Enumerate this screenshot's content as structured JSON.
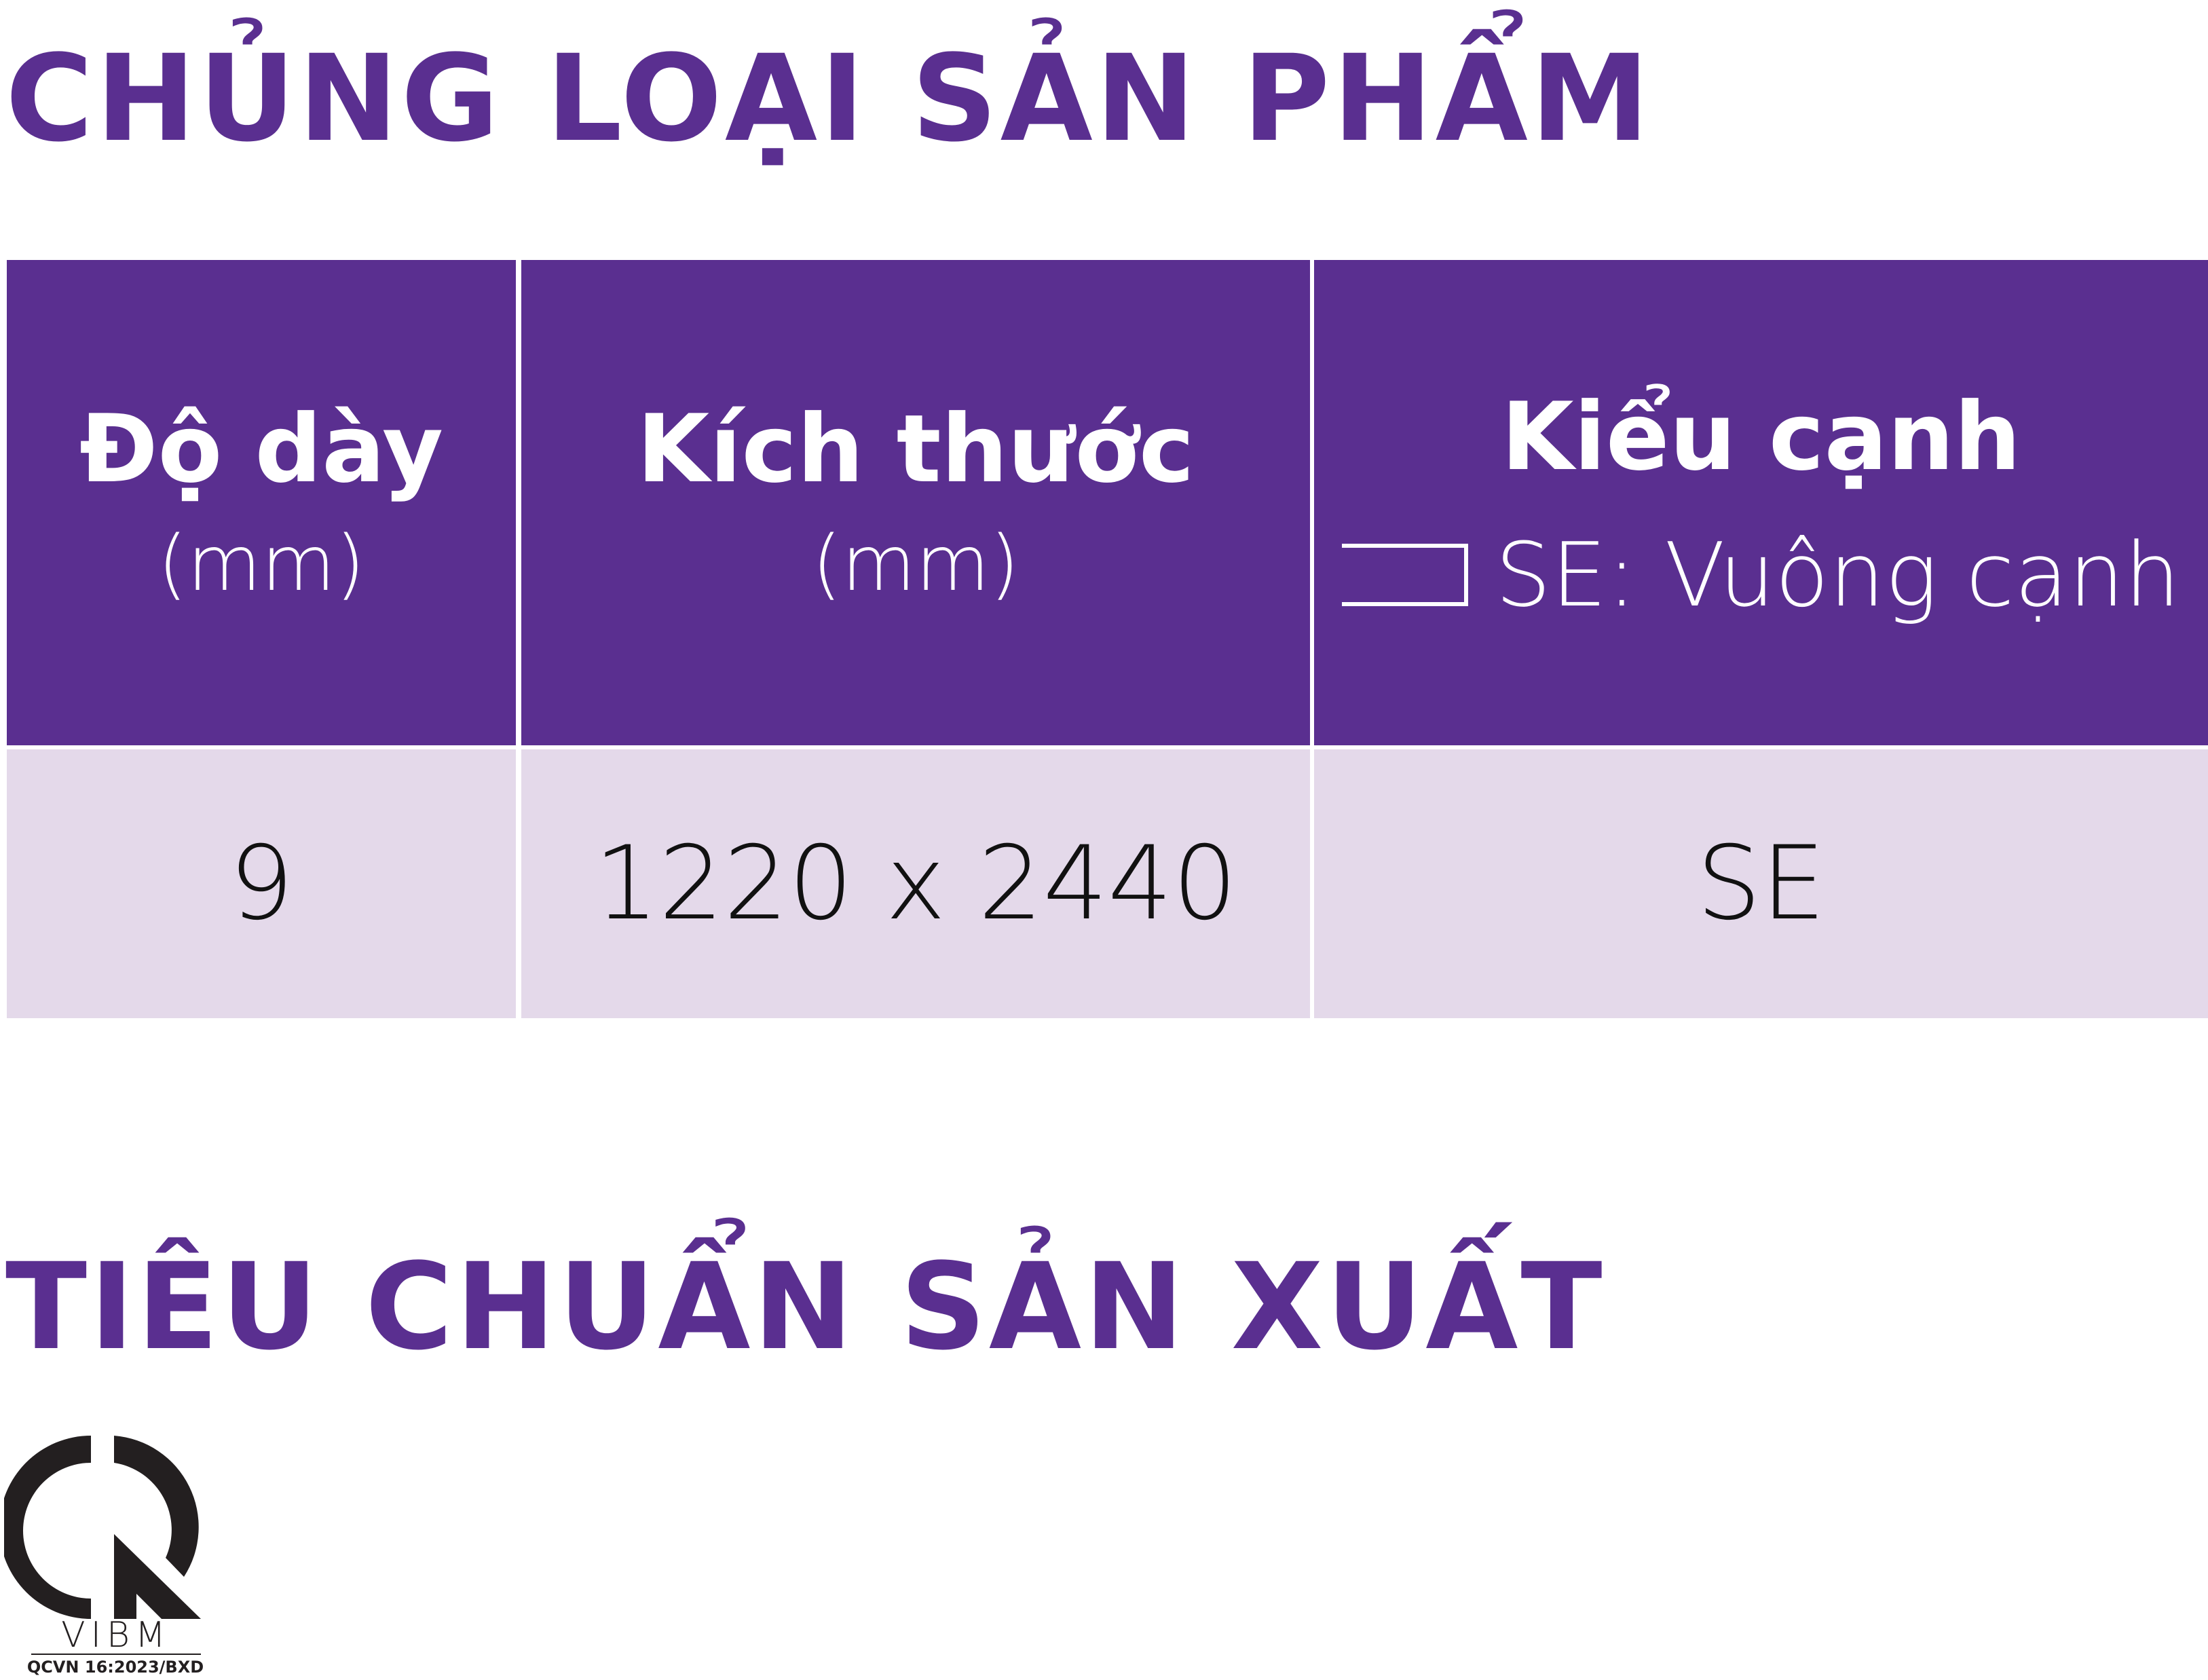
{
  "section1_title": "CHỦNG LOẠI SẢN PHẨM",
  "table": {
    "headers": [
      {
        "label": "Độ dày",
        "unit": "(mm)"
      },
      {
        "label": "Kích thước",
        "unit": "(mm)"
      },
      {
        "label": "Kiểu cạnh",
        "legend": "SE: Vuông cạnh",
        "legend_icon": "square-edge-icon"
      }
    ],
    "rows": [
      [
        "9",
        "1220 x 2440",
        "SE"
      ]
    ]
  },
  "section2_title": "TIÊU CHUẨN SẢN XUẤT",
  "certification": {
    "logo_text": "VIBM",
    "standard": "QCVN 16:2023/BXD"
  },
  "colors": {
    "brand_purple": "#5a2f90",
    "row_bg": "#e4d9ea"
  }
}
